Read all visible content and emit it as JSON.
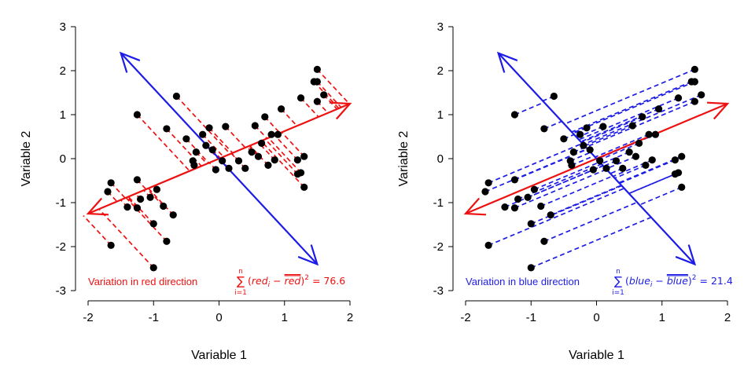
{
  "colors": {
    "red": "#ee1111",
    "blue": "#1c1ce6",
    "point": "#000000",
    "axis": "#000000"
  },
  "chart_data": [
    {
      "type": "scatter",
      "title": "",
      "xlabel": "Variable 1",
      "ylabel": "Variable 2",
      "xlim": [
        -2,
        2
      ],
      "ylim": [
        -3,
        3
      ],
      "xticks": [
        -2,
        -1,
        0,
        1,
        2
      ],
      "yticks": [
        -3,
        -2,
        -1,
        0,
        1,
        2,
        3
      ],
      "projection_direction": "red",
      "caption": "Variation in red direction",
      "formula": {
        "sum_upper": "n",
        "sum_lower": "i=1",
        "var": "red",
        "value": "76.6"
      },
      "arrows": [
        {
          "color": "red",
          "from": [
            -2.0,
            -1.25
          ],
          "to": [
            2.0,
            1.25
          ]
        },
        {
          "color": "blue",
          "from": [
            -1.5,
            2.4
          ],
          "to": [
            1.5,
            -2.4
          ]
        }
      ],
      "points": [
        [
          1.5,
          2.03
        ],
        [
          1.45,
          1.75
        ],
        [
          1.5,
          1.75
        ],
        [
          1.6,
          1.45
        ],
        [
          1.5,
          1.3
        ],
        [
          1.25,
          1.38
        ],
        [
          0.95,
          1.13
        ],
        [
          -0.65,
          1.42
        ],
        [
          -1.25,
          1.0
        ],
        [
          0.7,
          0.95
        ],
        [
          0.55,
          0.75
        ],
        [
          -0.8,
          0.68
        ],
        [
          -0.15,
          0.7
        ],
        [
          0.1,
          0.73
        ],
        [
          0.8,
          0.55
        ],
        [
          -0.25,
          0.55
        ],
        [
          -0.5,
          0.45
        ],
        [
          -0.2,
          0.3
        ],
        [
          -0.1,
          0.2
        ],
        [
          0.9,
          0.55
        ],
        [
          0.65,
          0.35
        ],
        [
          -0.35,
          0.15
        ],
        [
          0.5,
          0.15
        ],
        [
          0.6,
          0.05
        ],
        [
          -0.4,
          -0.05
        ],
        [
          0.85,
          -0.03
        ],
        [
          0.3,
          -0.05
        ],
        [
          0.05,
          -0.05
        ],
        [
          -0.38,
          -0.15
        ],
        [
          0.15,
          -0.22
        ],
        [
          0.4,
          -0.22
        ],
        [
          -0.05,
          -0.25
        ],
        [
          0.75,
          -0.15
        ],
        [
          1.3,
          0.05
        ],
        [
          1.2,
          -0.03
        ],
        [
          1.25,
          -0.32
        ],
        [
          1.2,
          -0.35
        ],
        [
          1.3,
          -0.65
        ],
        [
          -1.7,
          -0.75
        ],
        [
          -1.65,
          -0.55
        ],
        [
          -1.25,
          -0.48
        ],
        [
          -0.95,
          -0.7
        ],
        [
          -1.05,
          -0.88
        ],
        [
          -1.2,
          -0.92
        ],
        [
          -0.85,
          -1.08
        ],
        [
          -1.4,
          -1.1
        ],
        [
          -1.25,
          -1.12
        ],
        [
          -0.7,
          -1.28
        ],
        [
          -1.0,
          -1.48
        ],
        [
          -0.8,
          -1.88
        ],
        [
          -1.65,
          -1.97
        ],
        [
          -1.0,
          -2.48
        ]
      ]
    },
    {
      "type": "scatter",
      "title": "",
      "xlabel": "Variable 1",
      "ylabel": "Variable 2",
      "xlim": [
        -2,
        2
      ],
      "ylim": [
        -3,
        3
      ],
      "xticks": [
        -2,
        -1,
        0,
        1,
        2
      ],
      "yticks": [
        -3,
        -2,
        -1,
        0,
        1,
        2,
        3
      ],
      "projection_direction": "blue",
      "caption": "Variation in blue direction",
      "formula": {
        "sum_upper": "n",
        "sum_lower": "i=1",
        "var": "blue",
        "value": "21.4"
      },
      "arrows": [
        {
          "color": "red",
          "from": [
            -2.0,
            -1.25
          ],
          "to": [
            2.0,
            1.25
          ]
        },
        {
          "color": "blue",
          "from": [
            -1.5,
            2.4
          ],
          "to": [
            1.5,
            -2.4
          ]
        }
      ],
      "points": [
        [
          1.5,
          2.03
        ],
        [
          1.45,
          1.75
        ],
        [
          1.5,
          1.75
        ],
        [
          1.6,
          1.45
        ],
        [
          1.5,
          1.3
        ],
        [
          1.25,
          1.38
        ],
        [
          0.95,
          1.13
        ],
        [
          -0.65,
          1.42
        ],
        [
          -1.25,
          1.0
        ],
        [
          0.7,
          0.95
        ],
        [
          0.55,
          0.75
        ],
        [
          -0.8,
          0.68
        ],
        [
          -0.15,
          0.7
        ],
        [
          0.1,
          0.73
        ],
        [
          0.8,
          0.55
        ],
        [
          -0.25,
          0.55
        ],
        [
          -0.5,
          0.45
        ],
        [
          -0.2,
          0.3
        ],
        [
          -0.1,
          0.2
        ],
        [
          0.9,
          0.55
        ],
        [
          0.65,
          0.35
        ],
        [
          -0.35,
          0.15
        ],
        [
          0.5,
          0.15
        ],
        [
          0.6,
          0.05
        ],
        [
          -0.4,
          -0.05
        ],
        [
          0.85,
          -0.03
        ],
        [
          0.3,
          -0.05
        ],
        [
          0.05,
          -0.05
        ],
        [
          -0.38,
          -0.15
        ],
        [
          0.15,
          -0.22
        ],
        [
          0.4,
          -0.22
        ],
        [
          -0.05,
          -0.25
        ],
        [
          0.75,
          -0.15
        ],
        [
          1.3,
          0.05
        ],
        [
          1.2,
          -0.03
        ],
        [
          1.25,
          -0.32
        ],
        [
          1.2,
          -0.35
        ],
        [
          1.3,
          -0.65
        ],
        [
          -1.7,
          -0.75
        ],
        [
          -1.65,
          -0.55
        ],
        [
          -1.25,
          -0.48
        ],
        [
          -0.95,
          -0.7
        ],
        [
          -1.05,
          -0.88
        ],
        [
          -1.2,
          -0.92
        ],
        [
          -0.85,
          -1.08
        ],
        [
          -1.4,
          -1.1
        ],
        [
          -1.25,
          -1.12
        ],
        [
          -0.7,
          -1.28
        ],
        [
          -1.0,
          -1.48
        ],
        [
          -0.8,
          -1.88
        ],
        [
          -1.65,
          -1.97
        ],
        [
          -1.0,
          -2.48
        ]
      ]
    }
  ]
}
